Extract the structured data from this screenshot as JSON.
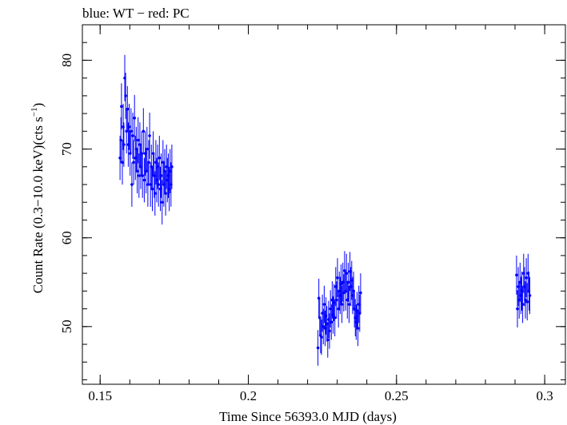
{
  "chart_data": {
    "type": "scatter",
    "title": "blue: WT − red: PC",
    "xlabel": "Time Since 56393.0 MJD (days)",
    "ylabel_main": "Count Rate (0.3−10.0 keV)(cts s",
    "ylabel_sup": "−1",
    "ylabel_close": ")",
    "xlim": [
      0.144,
      0.307
    ],
    "ylim": [
      43.5,
      84
    ],
    "xticks": [
      0.15,
      0.2,
      0.25,
      0.3
    ],
    "xtick_labels": [
      "0.15",
      "0.2",
      "0.25",
      "0.3"
    ],
    "x_minor_step": 0.01,
    "yticks": [
      50,
      60,
      70,
      80
    ],
    "ytick_labels": [
      "50",
      "60",
      "70",
      "80"
    ],
    "y_minor_step": 2,
    "grid": false,
    "colors": {
      "WT": "#0000ff",
      "axes": "#000000"
    },
    "series": [
      {
        "name": "WT",
        "color": "#0000ff",
        "x_err": 0.0003,
        "points": [
          [
            0.1567,
            69.0,
            2.5
          ],
          [
            0.157,
            71.0,
            2.6
          ],
          [
            0.1572,
            74.8,
            2.6
          ],
          [
            0.1575,
            68.5,
            2.5
          ],
          [
            0.1578,
            72.5,
            2.6
          ],
          [
            0.158,
            70.5,
            2.5
          ],
          [
            0.1583,
            78.0,
            2.6
          ],
          [
            0.1586,
            76.0,
            2.6
          ],
          [
            0.1589,
            72.0,
            2.5
          ],
          [
            0.1592,
            74.5,
            2.6
          ],
          [
            0.1595,
            70.5,
            2.5
          ],
          [
            0.1598,
            72.5,
            2.6
          ],
          [
            0.1601,
            69.5,
            2.5
          ],
          [
            0.1604,
            72.0,
            2.6
          ],
          [
            0.1607,
            66.0,
            2.5
          ],
          [
            0.161,
            71.5,
            2.6
          ],
          [
            0.1613,
            68.5,
            2.5
          ],
          [
            0.1616,
            73.5,
            2.6
          ],
          [
            0.1619,
            69.0,
            2.5
          ],
          [
            0.1622,
            70.0,
            2.5
          ],
          [
            0.1625,
            67.5,
            2.5
          ],
          [
            0.1628,
            71.0,
            2.6
          ],
          [
            0.1631,
            67.0,
            2.5
          ],
          [
            0.1634,
            70.5,
            2.5
          ],
          [
            0.1637,
            68.0,
            2.5
          ],
          [
            0.164,
            69.5,
            2.5
          ],
          [
            0.1643,
            67.0,
            2.5
          ],
          [
            0.1646,
            72.0,
            2.6
          ],
          [
            0.1649,
            66.5,
            2.5
          ],
          [
            0.1652,
            69.5,
            2.5
          ],
          [
            0.1655,
            67.5,
            2.5
          ],
          [
            0.1658,
            70.0,
            2.5
          ],
          [
            0.1661,
            66.0,
            2.5
          ],
          [
            0.1664,
            68.5,
            2.5
          ],
          [
            0.1667,
            71.5,
            2.6
          ],
          [
            0.167,
            66.0,
            2.5
          ],
          [
            0.1673,
            68.0,
            2.5
          ],
          [
            0.1676,
            65.5,
            2.5
          ],
          [
            0.1679,
            69.5,
            2.5
          ],
          [
            0.1682,
            67.0,
            2.5
          ],
          [
            0.1685,
            65.0,
            2.5
          ],
          [
            0.1688,
            68.5,
            2.5
          ],
          [
            0.1691,
            66.5,
            2.5
          ],
          [
            0.1694,
            68.0,
            2.5
          ],
          [
            0.1697,
            66.0,
            2.5
          ],
          [
            0.17,
            69.0,
            2.5
          ],
          [
            0.1703,
            65.5,
            2.5
          ],
          [
            0.1706,
            67.0,
            2.5
          ],
          [
            0.1709,
            64.0,
            2.5
          ],
          [
            0.1712,
            68.5,
            2.5
          ],
          [
            0.1715,
            66.0,
            2.5
          ],
          [
            0.1718,
            67.5,
            2.5
          ],
          [
            0.1721,
            65.0,
            2.5
          ],
          [
            0.1724,
            68.0,
            2.5
          ],
          [
            0.1727,
            66.5,
            2.5
          ],
          [
            0.173,
            67.0,
            2.5
          ],
          [
            0.1733,
            65.5,
            2.5
          ],
          [
            0.1736,
            67.5,
            2.5
          ],
          [
            0.1739,
            66.0,
            2.5
          ],
          [
            0.1742,
            68.0,
            2.5
          ],
          [
            0.2235,
            47.6,
            2.0
          ],
          [
            0.2238,
            53.2,
            2.2
          ],
          [
            0.2241,
            51.0,
            2.1
          ],
          [
            0.2244,
            49.0,
            2.0
          ],
          [
            0.2247,
            48.8,
            2.0
          ],
          [
            0.225,
            51.5,
            2.1
          ],
          [
            0.2253,
            50.0,
            2.0
          ],
          [
            0.2256,
            52.5,
            2.1
          ],
          [
            0.2259,
            49.8,
            2.0
          ],
          [
            0.2262,
            51.2,
            2.1
          ],
          [
            0.2265,
            50.3,
            2.0
          ],
          [
            0.2268,
            48.5,
            2.0
          ],
          [
            0.2271,
            50.8,
            2.1
          ],
          [
            0.2274,
            49.5,
            2.0
          ],
          [
            0.2277,
            52.0,
            2.1
          ],
          [
            0.228,
            50.5,
            2.0
          ],
          [
            0.2283,
            53.0,
            2.1
          ],
          [
            0.2286,
            51.3,
            2.1
          ],
          [
            0.2289,
            52.7,
            2.1
          ],
          [
            0.2292,
            51.0,
            2.1
          ],
          [
            0.2295,
            54.5,
            2.2
          ],
          [
            0.2298,
            53.0,
            2.1
          ],
          [
            0.2301,
            55.5,
            2.2
          ],
          [
            0.2304,
            52.0,
            2.1
          ],
          [
            0.2307,
            54.0,
            2.2
          ],
          [
            0.231,
            53.5,
            2.1
          ],
          [
            0.2313,
            54.8,
            2.2
          ],
          [
            0.2316,
            52.5,
            2.1
          ],
          [
            0.2319,
            55.0,
            2.2
          ],
          [
            0.2322,
            53.8,
            2.1
          ],
          [
            0.2325,
            56.3,
            2.2
          ],
          [
            0.2328,
            54.0,
            2.2
          ],
          [
            0.2331,
            56.0,
            2.2
          ],
          [
            0.2334,
            53.0,
            2.1
          ],
          [
            0.2337,
            55.0,
            2.2
          ],
          [
            0.234,
            52.5,
            2.1
          ],
          [
            0.2343,
            56.2,
            2.2
          ],
          [
            0.2346,
            54.5,
            2.2
          ],
          [
            0.2349,
            55.2,
            2.2
          ],
          [
            0.2352,
            53.5,
            2.1
          ],
          [
            0.2355,
            54.0,
            2.2
          ],
          [
            0.2358,
            52.0,
            2.1
          ],
          [
            0.2361,
            51.0,
            2.1
          ],
          [
            0.2364,
            50.5,
            2.0
          ],
          [
            0.2367,
            51.8,
            2.1
          ],
          [
            0.237,
            49.8,
            2.0
          ],
          [
            0.2373,
            52.5,
            2.1
          ],
          [
            0.2376,
            51.5,
            2.1
          ],
          [
            0.2379,
            53.8,
            2.2
          ],
          [
            0.2905,
            55.8,
            2.2
          ],
          [
            0.2908,
            52.0,
            2.1
          ],
          [
            0.2911,
            54.5,
            2.2
          ],
          [
            0.2914,
            53.0,
            2.1
          ],
          [
            0.2917,
            55.0,
            2.2
          ],
          [
            0.292,
            53.5,
            2.1
          ],
          [
            0.2923,
            54.0,
            2.2
          ],
          [
            0.2926,
            52.5,
            2.1
          ],
          [
            0.2929,
            56.0,
            2.2
          ],
          [
            0.2932,
            54.5,
            2.2
          ],
          [
            0.2935,
            53.0,
            2.1
          ],
          [
            0.2938,
            55.5,
            2.2
          ],
          [
            0.2941,
            52.8,
            2.1
          ],
          [
            0.2944,
            56.0,
            2.2
          ],
          [
            0.2947,
            54.0,
            2.2
          ],
          [
            0.295,
            53.5,
            2.1
          ]
        ]
      }
    ]
  }
}
